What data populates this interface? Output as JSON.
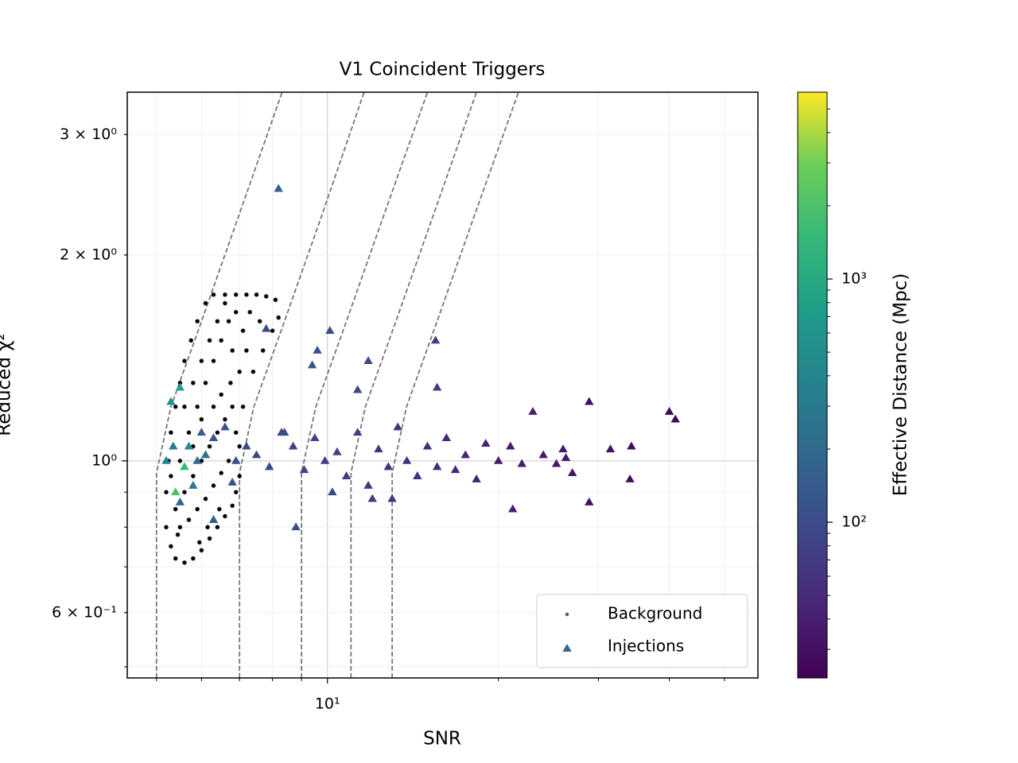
{
  "chart_data": {
    "type": "scatter",
    "title": "V1 Coincident Triggers",
    "xlabel": "SNR",
    "ylabel": "Reduced χ²",
    "xscale": "log",
    "yscale": "log",
    "xlim": [
      4.44,
      57.3
    ],
    "ylim": [
      0.4815,
      3.46
    ],
    "xticks": [
      {
        "value": 10,
        "label": "10¹"
      }
    ],
    "xminor": [
      5,
      6,
      7,
      8,
      9,
      20,
      30,
      40,
      50
    ],
    "yticks": [
      {
        "value": 0.6,
        "label": "6 × 10⁻¹"
      },
      {
        "value": 1,
        "label": "10⁰"
      },
      {
        "value": 2,
        "label": "2 × 10⁰"
      },
      {
        "value": 3,
        "label": "3 × 10⁰"
      }
    ],
    "yminor": [
      0.5,
      0.7,
      0.8,
      0.9
    ],
    "grid": true,
    "legend": "lower right",
    "colorbar": {
      "label": "Effective Distance (Mpc)",
      "scale": "log",
      "lim": [
        22.9,
        5860
      ],
      "ticks": [
        {
          "value": 100,
          "label": "10²"
        },
        {
          "value": 1000,
          "label": "10³"
        }
      ],
      "minor": [
        30,
        40,
        50,
        60,
        70,
        80,
        90,
        200,
        300,
        400,
        500,
        600,
        700,
        800,
        900,
        2000,
        3000,
        4000,
        5000
      ]
    },
    "curves": [
      {
        "x": [
          5,
          5,
          5.3,
          6,
          7,
          8.32
        ],
        "values": [
          0.4815,
          0.96,
          1.2,
          1.6,
          2.3,
          3.46
        ]
      },
      {
        "x": [
          7,
          7,
          7.42,
          8.4,
          9.8,
          11.6
        ],
        "values": [
          0.4815,
          0.96,
          1.2,
          1.6,
          2.3,
          3.46
        ]
      },
      {
        "x": [
          9,
          9,
          9.54,
          10.8,
          12.6,
          15.0
        ],
        "values": [
          0.4815,
          0.96,
          1.2,
          1.6,
          2.3,
          3.46
        ]
      },
      {
        "x": [
          11,
          11,
          11.66,
          13.2,
          15.4,
          18.3
        ],
        "values": [
          0.4815,
          0.96,
          1.2,
          1.6,
          2.3,
          3.46
        ]
      },
      {
        "x": [
          13,
          13,
          13.78,
          15.6,
          18.2,
          21.7
        ],
        "values": [
          0.4815,
          0.96,
          1.2,
          1.6,
          2.3,
          3.46
        ]
      }
    ],
    "series": [
      {
        "name": "Background",
        "marker": "dot",
        "color": "#555555",
        "x": [
          5.2,
          5.3,
          5.4,
          5.6,
          5.8,
          6.0,
          6.2,
          6.4,
          6.6,
          6.8,
          5.2,
          5.25,
          5.3,
          5.4,
          5.5,
          5.6,
          5.75,
          5.9,
          6.1,
          6.3,
          6.6,
          6.9,
          7.2,
          7.5,
          7.8,
          8.1,
          8.2,
          8.0,
          7.7,
          7.4,
          7.1,
          7.0,
          7.0,
          6.9,
          5.4,
          5.6,
          5.8,
          6.0,
          6.2,
          6.4,
          6.6,
          6.8,
          5.5,
          5.7,
          5.9,
          6.1,
          6.3,
          6.5,
          6.7,
          6.9,
          7.1,
          7.3,
          7.6,
          5.3,
          5.5,
          5.7,
          5.9,
          6.1,
          6.3,
          6.5,
          6.7,
          6.9,
          5.6,
          5.8,
          6.0,
          6.2,
          6.4,
          6.6,
          6.8,
          7.0,
          7.2,
          6.5,
          6.3,
          6.0,
          5.8,
          5.45,
          6.15,
          6.45,
          5.95,
          6.75
        ],
        "values": [
          0.8,
          0.75,
          0.72,
          0.71,
          0.72,
          0.74,
          0.77,
          0.8,
          0.83,
          0.86,
          0.9,
          1.0,
          1.1,
          1.2,
          1.3,
          1.4,
          1.5,
          1.6,
          1.7,
          1.75,
          1.75,
          1.75,
          1.75,
          1.75,
          1.74,
          1.72,
          1.62,
          1.55,
          1.45,
          1.35,
          1.2,
          1.05,
          0.95,
          0.9,
          0.85,
          0.9,
          0.95,
          1.0,
          1.05,
          1.1,
          1.15,
          1.2,
          1.0,
          1.1,
          1.2,
          1.3,
          1.4,
          1.5,
          1.6,
          1.65,
          1.55,
          1.65,
          1.6,
          0.95,
          0.8,
          0.82,
          0.85,
          0.88,
          0.92,
          0.96,
          1.0,
          1.1,
          1.2,
          1.3,
          1.4,
          1.5,
          1.6,
          1.7,
          1.45,
          1.35,
          1.45,
          1.25,
          1.2,
          1.15,
          1.05,
          0.78,
          0.8,
          0.85,
          0.76,
          1.3
        ]
      },
      {
        "name": "Injections",
        "marker": "triangle",
        "color": "#31688e",
        "x": [
          8.2,
          10.1,
          15.5,
          15.6,
          28.9,
          40,
          41,
          21.2,
          28.9,
          34.1,
          34.3,
          31.5,
          26,
          26.3,
          27,
          25.3,
          23,
          7.8,
          9.6,
          9.4,
          11.8,
          11.3,
          8.8,
          6.3,
          5.5,
          5.4,
          5.6,
          5.5,
          5.3,
          5.2,
          5.35,
          5.7,
          5.9,
          6.0,
          6.3,
          6.6,
          6.9,
          7.2,
          7.5,
          7.9,
          8.3,
          8.7,
          9.1,
          9.5,
          9.9,
          10.4,
          10.8,
          11.3,
          11.8,
          12.3,
          12.8,
          13.3,
          13.8,
          14.4,
          15,
          15.6,
          16.2,
          16.8,
          17.5,
          18.3,
          19,
          20,
          21,
          22,
          24,
          8.4,
          6.8,
          10.2,
          12.0,
          13.0,
          5.8,
          6.1
        ],
        "values": [
          2.5,
          1.55,
          1.5,
          1.28,
          1.22,
          1.18,
          1.15,
          0.85,
          0.87,
          0.94,
          1.05,
          1.04,
          1.04,
          1.01,
          0.96,
          0.99,
          1.18,
          1.56,
          1.45,
          1.38,
          1.4,
          1.27,
          0.8,
          0.82,
          0.87,
          0.9,
          0.98,
          1.28,
          1.22,
          1.0,
          1.05,
          1.05,
          1.0,
          1.1,
          1.08,
          1.12,
          1.0,
          1.05,
          1.02,
          0.98,
          1.1,
          1.05,
          0.97,
          1.08,
          1.0,
          1.03,
          0.95,
          1.1,
          0.92,
          1.04,
          0.98,
          1.12,
          1.0,
          0.95,
          1.05,
          0.98,
          1.08,
          0.97,
          1.02,
          0.94,
          1.06,
          1.0,
          1.05,
          0.99,
          1.02,
          1.1,
          0.93,
          0.9,
          0.88,
          0.88,
          0.92,
          1.02
        ],
        "distance": [
          150,
          100,
          70,
          70,
          30,
          25,
          25,
          40,
          30,
          28,
          28,
          30,
          35,
          35,
          35,
          35,
          40,
          100,
          110,
          110,
          90,
          90,
          100,
          150,
          200,
          2000,
          1500,
          800,
          600,
          400,
          300,
          500,
          200,
          150,
          120,
          110,
          100,
          100,
          90,
          90,
          85,
          85,
          80,
          80,
          75,
          75,
          70,
          70,
          65,
          65,
          60,
          60,
          55,
          55,
          50,
          50,
          48,
          46,
          45,
          43,
          42,
          40,
          38,
          37,
          36,
          100,
          110,
          90,
          70,
          65,
          300,
          250
        ]
      }
    ]
  }
}
